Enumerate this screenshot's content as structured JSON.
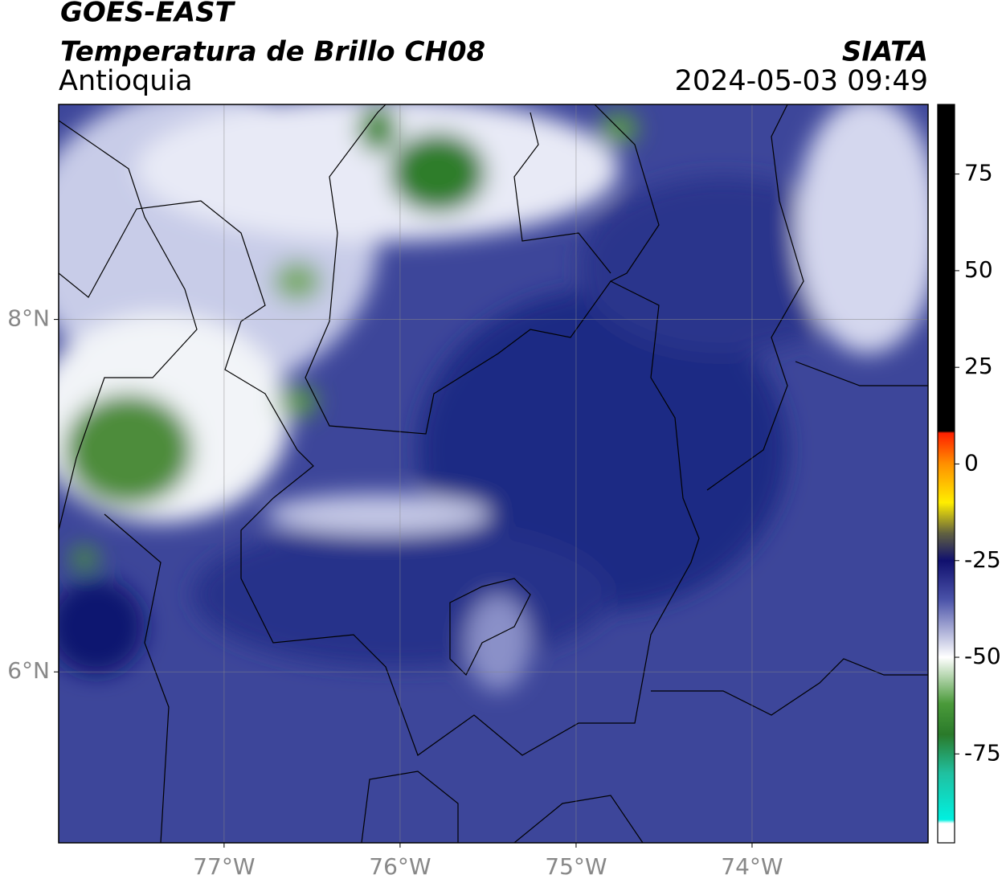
{
  "header": {
    "title": "GOES-EAST",
    "subtitle": "Temperatura de Brillo CH08",
    "region": "Antioquia",
    "source": "SIATA",
    "datetime": "2024-05-03 09:49"
  },
  "map": {
    "xlim": [
      -77.94,
      -73.0
    ],
    "ylim": [
      5.03,
      9.22
    ],
    "grid": true,
    "xticks": [
      {
        "value": -77,
        "label": "77°W"
      },
      {
        "value": -76,
        "label": "76°W"
      },
      {
        "value": -75,
        "label": "75°W"
      },
      {
        "value": -74,
        "label": "74°W"
      }
    ],
    "yticks": [
      {
        "value": 6,
        "label": "6°N"
      },
      {
        "value": 8,
        "label": "8°N"
      }
    ]
  },
  "colorbar": {
    "lim": [
      -98,
      93
    ],
    "ticks": [
      -75,
      -50,
      -25,
      0,
      25,
      50,
      75
    ],
    "colors": [
      {
        "value": 93,
        "color": "#000000"
      },
      {
        "value": 8.5,
        "color": "#000000"
      },
      {
        "value": 8,
        "color": "#ff2000"
      },
      {
        "value": 0,
        "color": "#ff9000"
      },
      {
        "value": -10,
        "color": "#ffee00"
      },
      {
        "value": -18,
        "color": "#606040"
      },
      {
        "value": -25,
        "color": "#10106e"
      },
      {
        "value": -35,
        "color": "#4a52a8"
      },
      {
        "value": -50,
        "color": "#ffffff"
      },
      {
        "value": -62,
        "color": "#4a9a3a"
      },
      {
        "value": -70,
        "color": "#2a7a2a"
      },
      {
        "value": -80,
        "color": "#20c0a0"
      },
      {
        "value": -92,
        "color": "#00f0e0"
      },
      {
        "value": -93,
        "color": "#ffffff"
      },
      {
        "value": -98,
        "color": "#ffffff"
      }
    ]
  }
}
